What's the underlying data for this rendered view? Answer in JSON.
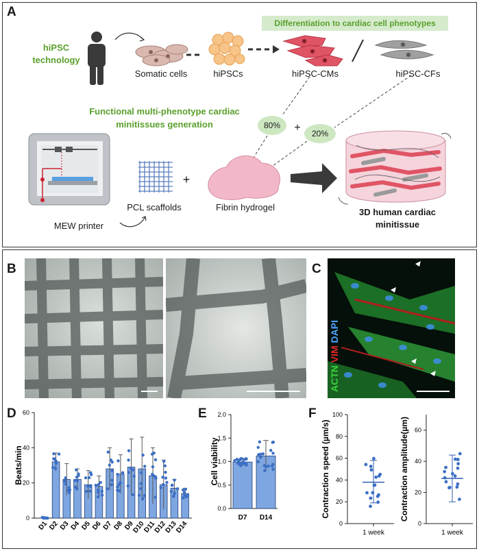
{
  "panelA": {
    "label": "A",
    "tech": [
      "hiPSC",
      "technology"
    ],
    "diff_banner": "Differentiation to cardiac cell phenotypes",
    "somatic": "Somatic cells",
    "hipscs": "hiPSCs",
    "cms": "hiPSC-CMs",
    "cfs": "hiPSC-CFs",
    "gen_title": [
      "Functional multi-phenotype cardiac",
      "minitissues generation"
    ],
    "pct_cm": "80%",
    "plus": "+",
    "pct_cf": "20%",
    "pcl": "PCL scaffolds",
    "fibrin": "Fibrin hydrogel",
    "printer": "MEW printer",
    "result": [
      "3D human cardiac",
      "minitissue"
    ],
    "colors": {
      "green": "#5aa02c",
      "banner": "#d5ebcc",
      "pct": "#cde7c1",
      "cm": "#e05565",
      "cf": "#9a9a9a"
    }
  },
  "panelB": {
    "label": "B"
  },
  "panelC": {
    "label": "C",
    "stain": [
      "ACTN",
      "VIM",
      "DAPI"
    ],
    "stain_colors": [
      "#3ad13a",
      "#e02828",
      "#4da3ff"
    ]
  },
  "panelD": {
    "label": "D",
    "chart_data": {
      "type": "bar",
      "ylabel": "Beats/min",
      "categories": [
        "D1",
        "D2",
        "D3",
        "D4",
        "D5",
        "D6",
        "D7",
        "D8",
        "D9",
        "D10",
        "D11",
        "D12",
        "D13",
        "D14"
      ],
      "values": [
        0,
        32,
        22,
        22,
        19,
        18,
        28,
        25,
        29,
        28,
        24,
        19,
        17,
        14
      ],
      "errors": [
        0,
        5,
        9,
        6,
        8,
        6,
        12,
        11,
        16,
        18,
        16,
        14,
        5,
        3
      ],
      "ylim": [
        0,
        60
      ],
      "yticks": [
        0,
        20,
        40,
        60
      ],
      "bar_color": "#7ea6e0",
      "point_color": "#3b6fc4"
    }
  },
  "panelE": {
    "label": "E",
    "chart_data": {
      "type": "bar",
      "ylabel": "Cell viability",
      "categories": [
        "D7",
        "D14"
      ],
      "values": [
        0.99,
        1.12
      ],
      "errors": [
        0.08,
        0.33
      ],
      "ylim": [
        0,
        2.0
      ],
      "yticks": [
        "0.0",
        "0.5",
        "1.0",
        "1.5",
        "2.0"
      ]
    }
  },
  "panelF": {
    "label": "F",
    "chart_data": [
      {
        "type": "scatter",
        "ylabel": "Contraction speed (µm/s)",
        "category": "1 week",
        "mean": 38,
        "sd_low": 19,
        "sd_high": 58,
        "ylim": [
          0,
          100
        ],
        "yticks": [
          0,
          20,
          40,
          60,
          80,
          100
        ]
      },
      {
        "type": "scatter",
        "ylabel": "Contraction amplitude(µm)",
        "category": "1 week",
        "mean": 29,
        "sd_low": 14,
        "sd_high": 44,
        "ylim": [
          0,
          70
        ],
        "yticks": [
          0,
          20,
          40,
          60
        ]
      }
    ]
  }
}
